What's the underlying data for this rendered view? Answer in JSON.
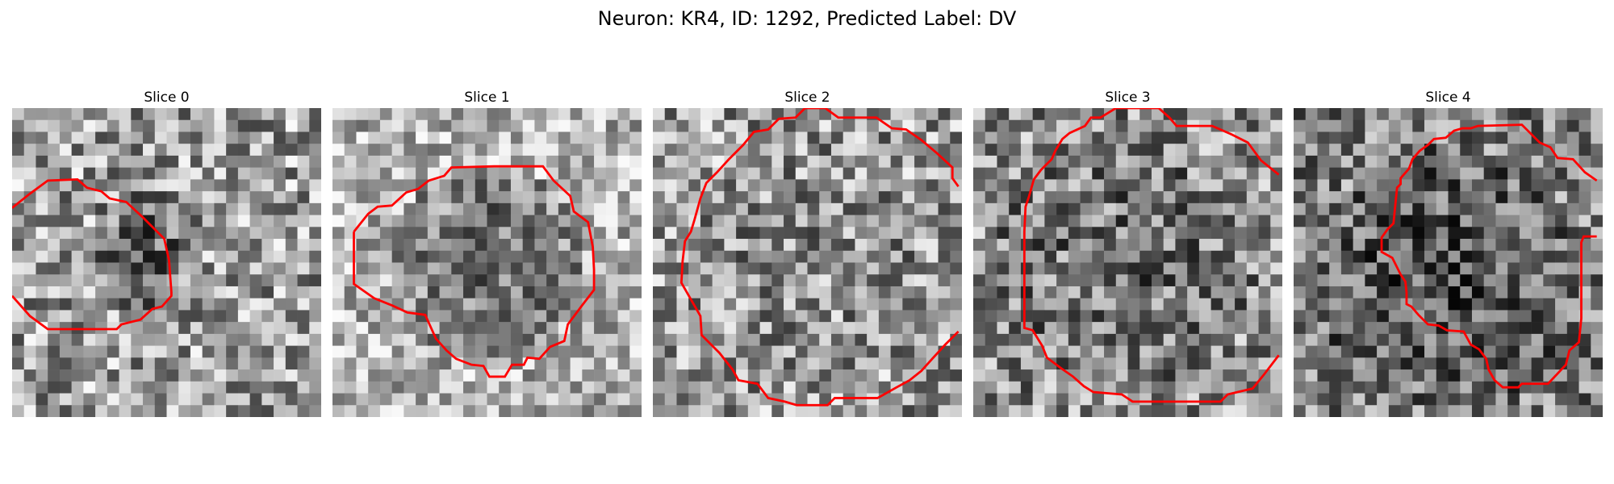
{
  "figure": {
    "title": "Neuron: KR4, ID: 1292, Predicted Label: DV",
    "contour_color": "#ff0000"
  },
  "slices": [
    {
      "title": "Slice 0"
    },
    {
      "title": "Slice 1"
    },
    {
      "title": "Slice 2"
    },
    {
      "title": "Slice 3"
    },
    {
      "title": "Slice 4"
    }
  ]
}
